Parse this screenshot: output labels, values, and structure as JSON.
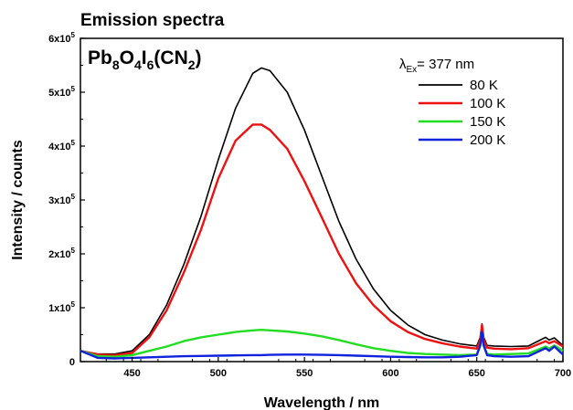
{
  "chart_data": {
    "type": "line",
    "title": "Emission spectra",
    "annotation": {
      "compound": [
        {
          "text": "Pb",
          "sub": false
        },
        {
          "text": "8",
          "sub": true
        },
        {
          "text": "O",
          "sub": false
        },
        {
          "text": "4",
          "sub": true
        },
        {
          "text": "I",
          "sub": false
        },
        {
          "text": "6",
          "sub": true
        },
        {
          "text": "(CN",
          "sub": false
        },
        {
          "text": "2",
          "sub": true
        },
        {
          "text": ")",
          "sub": false
        }
      ],
      "excitation_symbol": "λ",
      "excitation_sub": "Ex",
      "excitation_value": "= 377 nm"
    },
    "xlabel": "Wavelength / nm",
    "ylabel": "Intensity / counts",
    "xlim": [
      420,
      700
    ],
    "ylim": [
      0,
      600000
    ],
    "x_ticks": [
      450,
      500,
      550,
      600,
      650,
      700
    ],
    "y_ticks": [
      {
        "value": 0,
        "mant": "0",
        "exp": ""
      },
      {
        "value": 100000,
        "mant": "1x10",
        "exp": "5"
      },
      {
        "value": 200000,
        "mant": "2x10",
        "exp": "5"
      },
      {
        "value": 300000,
        "mant": "3x10",
        "exp": "5"
      },
      {
        "value": 400000,
        "mant": "4x10",
        "exp": "5"
      },
      {
        "value": 500000,
        "mant": "5x10",
        "exp": "5"
      },
      {
        "value": 600000,
        "mant": "6x10",
        "exp": "5"
      }
    ],
    "legend_position": "top-right",
    "x": [
      420,
      430,
      440,
      450,
      460,
      470,
      480,
      490,
      500,
      510,
      520,
      525,
      530,
      540,
      550,
      560,
      570,
      580,
      590,
      600,
      610,
      620,
      630,
      640,
      650,
      652,
      653,
      654,
      656,
      660,
      670,
      680,
      690,
      692,
      695,
      700
    ],
    "series": [
      {
        "name": "80 K",
        "color": "#000000",
        "values": [
          20000,
          14000,
          14000,
          20000,
          50000,
          105000,
          180000,
          270000,
          375000,
          470000,
          535000,
          545000,
          540000,
          500000,
          430000,
          345000,
          260000,
          190000,
          135000,
          95000,
          68000,
          50000,
          40000,
          33000,
          29000,
          45000,
          70000,
          45000,
          30000,
          29000,
          28000,
          29000,
          45000,
          40000,
          44000,
          30000
        ]
      },
      {
        "name": "100 K",
        "color": "#ee1111",
        "values": [
          20000,
          13000,
          12000,
          16000,
          45000,
          95000,
          165000,
          245000,
          340000,
          410000,
          440000,
          440000,
          430000,
          395000,
          335000,
          268000,
          200000,
          145000,
          105000,
          75000,
          55000,
          42000,
          34000,
          28000,
          24000,
          40000,
          68000,
          40000,
          26000,
          24000,
          23000,
          25000,
          38000,
          34000,
          38000,
          28000
        ]
      },
      {
        "name": "150 K",
        "color": "#22dd22",
        "values": [
          20000,
          10000,
          9000,
          12000,
          20000,
          28000,
          38000,
          45000,
          50000,
          55000,
          58000,
          59000,
          58000,
          56000,
          52000,
          47000,
          40000,
          32000,
          25000,
          20000,
          16000,
          14000,
          13000,
          12000,
          13000,
          30000,
          50000,
          30000,
          14000,
          13000,
          14000,
          15000,
          28000,
          24000,
          30000,
          20000
        ]
      },
      {
        "name": "200 K",
        "color": "#1122dd",
        "values": [
          20000,
          7000,
          6000,
          7000,
          8000,
          9000,
          10000,
          10500,
          11000,
          11500,
          12000,
          12000,
          12500,
          13000,
          13000,
          12500,
          12000,
          11000,
          10000,
          9000,
          8500,
          8000,
          8000,
          9000,
          12000,
          30000,
          55000,
          30000,
          12000,
          10000,
          9000,
          10000,
          25000,
          20000,
          28000,
          13000
        ]
      }
    ]
  }
}
